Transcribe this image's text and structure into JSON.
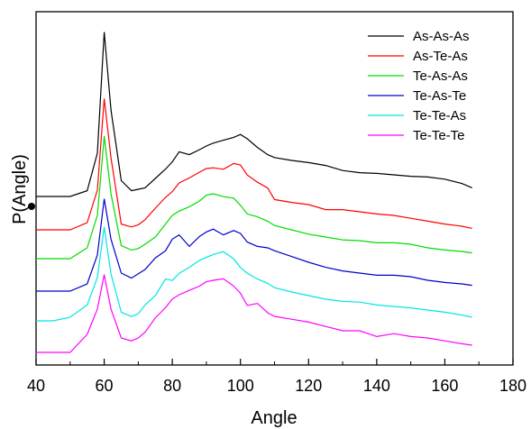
{
  "chart_data": {
    "type": "line",
    "xlabel": "Angle",
    "ylabel": "P(Angle)",
    "xlim": [
      40,
      180
    ],
    "x_ticks": [
      "40",
      "60",
      "80",
      "100",
      "120",
      "140",
      "160",
      "180"
    ],
    "y_ticks_labeled": false,
    "grid": false,
    "legend_position": "top-right",
    "y_scale": "arbitrary units (curves vertically offset)",
    "x": [
      40,
      45,
      50,
      55,
      58,
      60,
      62,
      65,
      68,
      70,
      72,
      75,
      78,
      80,
      82,
      85,
      88,
      90,
      92,
      95,
      98,
      100,
      102,
      105,
      108,
      110,
      115,
      120,
      125,
      130,
      135,
      140,
      145,
      150,
      155,
      160,
      165,
      168
    ],
    "series": [
      {
        "name": "As-As-As",
        "color": "#000000",
        "values": [
          0.0,
          0.0,
          0.0,
          0.08,
          0.6,
          2.28,
          1.2,
          0.22,
          0.08,
          0.1,
          0.12,
          0.25,
          0.38,
          0.48,
          0.62,
          0.58,
          0.65,
          0.7,
          0.74,
          0.78,
          0.82,
          0.86,
          0.8,
          0.68,
          0.58,
          0.54,
          0.5,
          0.47,
          0.43,
          0.36,
          0.33,
          0.32,
          0.3,
          0.28,
          0.27,
          0.24,
          0.18,
          0.12
        ]
      },
      {
        "name": "As-Te-As",
        "color": "#ff0000",
        "values": [
          0.0,
          0.0,
          0.0,
          0.1,
          0.55,
          1.82,
          1.0,
          0.08,
          0.04,
          0.07,
          0.14,
          0.3,
          0.45,
          0.53,
          0.65,
          0.72,
          0.8,
          0.85,
          0.86,
          0.84,
          0.92,
          0.9,
          0.76,
          0.66,
          0.58,
          0.42,
          0.38,
          0.35,
          0.28,
          0.28,
          0.25,
          0.22,
          0.2,
          0.16,
          0.12,
          0.08,
          0.05,
          0.02
        ]
      },
      {
        "name": "Te-As-As",
        "color": "#00dd00",
        "values": [
          0.0,
          0.0,
          0.0,
          0.15,
          0.6,
          1.7,
          0.9,
          0.18,
          0.12,
          0.14,
          0.2,
          0.3,
          0.48,
          0.6,
          0.66,
          0.72,
          0.8,
          0.88,
          0.9,
          0.86,
          0.84,
          0.74,
          0.62,
          0.58,
          0.52,
          0.46,
          0.4,
          0.34,
          0.3,
          0.26,
          0.25,
          0.22,
          0.22,
          0.2,
          0.15,
          0.12,
          0.1,
          0.08
        ]
      },
      {
        "name": "Te-As-Te",
        "color": "#0000cc",
        "values": [
          0.0,
          0.0,
          0.0,
          0.1,
          0.5,
          1.28,
          0.72,
          0.25,
          0.18,
          0.24,
          0.3,
          0.46,
          0.56,
          0.72,
          0.78,
          0.62,
          0.76,
          0.82,
          0.86,
          0.78,
          0.84,
          0.8,
          0.68,
          0.62,
          0.6,
          0.56,
          0.48,
          0.4,
          0.33,
          0.28,
          0.25,
          0.22,
          0.22,
          0.2,
          0.15,
          0.12,
          0.1,
          0.08
        ]
      },
      {
        "name": "Te-Te-As",
        "color": "#00e5e5",
        "values": [
          0.0,
          0.0,
          0.05,
          0.22,
          0.6,
          1.3,
          0.65,
          0.12,
          0.06,
          0.1,
          0.22,
          0.35,
          0.58,
          0.56,
          0.66,
          0.74,
          0.84,
          0.88,
          0.92,
          0.96,
          0.86,
          0.74,
          0.66,
          0.58,
          0.52,
          0.46,
          0.4,
          0.35,
          0.3,
          0.27,
          0.26,
          0.22,
          0.2,
          0.18,
          0.15,
          0.12,
          0.08,
          0.05
        ]
      },
      {
        "name": "Te-Te-Te",
        "color": "#ff00ff",
        "values": [
          0.0,
          0.0,
          0.0,
          0.25,
          0.6,
          1.08,
          0.6,
          0.2,
          0.16,
          0.2,
          0.28,
          0.48,
          0.62,
          0.74,
          0.8,
          0.86,
          0.92,
          0.98,
          1.0,
          1.02,
          0.92,
          0.82,
          0.65,
          0.68,
          0.55,
          0.5,
          0.46,
          0.42,
          0.36,
          0.3,
          0.3,
          0.22,
          0.26,
          0.22,
          0.2,
          0.16,
          0.12,
          0.1
        ]
      }
    ]
  }
}
